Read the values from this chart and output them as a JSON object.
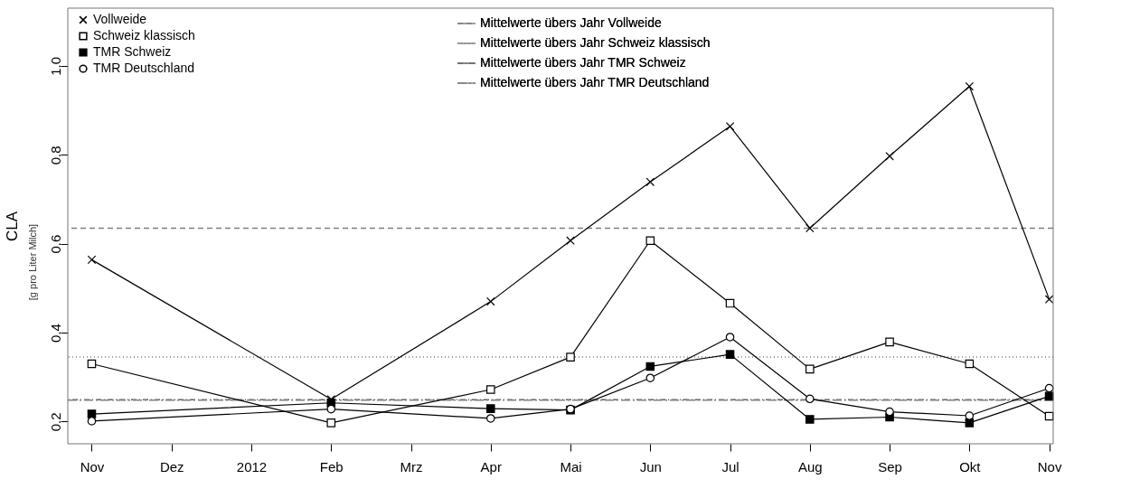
{
  "chart_data": {
    "type": "line",
    "ylabel": "CLA",
    "annotations": [
      "[g pro Liter Milch]"
    ],
    "categories": [
      "Nov",
      "Dez",
      "2012",
      "Feb",
      "Mrz",
      "Apr",
      "Mai",
      "Jun",
      "Jul",
      "Aug",
      "Sep",
      "Okt",
      "Nov"
    ],
    "series": [
      {
        "name": "Vollweide",
        "color": "#000000",
        "marker": "cross",
        "values": [
          0.564,
          null,
          null,
          0.25,
          null,
          0.47,
          0.607,
          0.739,
          0.864,
          0.635,
          0.797,
          0.954,
          0.475
        ]
      },
      {
        "name": "Schweiz klassisch",
        "color": "#000000",
        "marker": "square",
        "values": [
          0.33,
          null,
          null,
          0.197,
          null,
          0.272,
          0.345,
          0.607,
          0.466,
          0.318,
          0.379,
          0.33,
          0.212
        ]
      },
      {
        "name": "TMR Schweiz",
        "color": "#000000",
        "marker": "square",
        "values": [
          0.217,
          null,
          null,
          0.242,
          null,
          0.229,
          0.226,
          0.324,
          0.351,
          0.205,
          0.21,
          0.197,
          0.257
        ]
      },
      {
        "name": "TMR Deutschland",
        "color": "#000000",
        "marker": "circle",
        "values": [
          0.201,
          null,
          null,
          0.228,
          null,
          0.207,
          0.228,
          0.298,
          0.39,
          0.251,
          0.222,
          0.213,
          0.275
        ]
      }
    ],
    "ref_lines": [
      {
        "axis": "y",
        "value": 0.635,
        "label": "Mittelwerte übers Jahr Vollweide",
        "color": "#808080",
        "line_style": "dashed"
      },
      {
        "axis": "y",
        "value": 0.345,
        "label": "Mittelwerte übers Jahr Schweiz klassisch",
        "color": "#808080",
        "line_style": "dotted"
      },
      {
        "axis": "y",
        "value": 0.249,
        "label": "Mittelwerte übers Jahr TMR Schweiz",
        "color": "#606060",
        "line_style": "dashdot"
      },
      {
        "axis": "y",
        "value": 0.248,
        "label": "Mittelwerte übers Jahr TMR Deutschland",
        "color": "#808080",
        "line_style": "longdashdot"
      }
    ],
    "ylim": [
      0.15,
      1.13
    ],
    "yticks": [
      0.2,
      0.4,
      0.6,
      0.8,
      {
        "value": 1,
        "label": "1.0"
      }
    ],
    "grid": false,
    "legend": "top left"
  }
}
